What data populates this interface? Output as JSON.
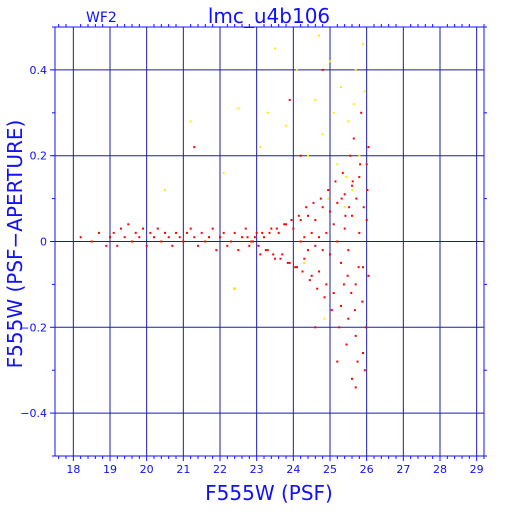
{
  "chart_data": {
    "type": "scatter",
    "title": "lmc_u4b106",
    "panel_label": "WF2",
    "xlabel": "F555W (PSF)",
    "ylabel": "F555W (PSF−APERTURE)",
    "xlim": [
      17.5,
      29.2
    ],
    "ylim": [
      -0.5,
      0.5
    ],
    "x_ticks": [
      18,
      19,
      20,
      21,
      22,
      23,
      24,
      25,
      26,
      27,
      28,
      29
    ],
    "x_tick_labels": [
      "18",
      "19",
      "20",
      "21",
      "22",
      "23",
      "24",
      "25",
      "26",
      "27",
      "28",
      "29"
    ],
    "y_ticks": [
      -0.4,
      -0.2,
      0,
      0.2,
      0.4
    ],
    "y_tick_labels": [
      "−0.4",
      "−0.2",
      "0",
      "0.2",
      "0.4"
    ],
    "grid": true,
    "colors": {
      "axis": "#1010ff",
      "grid": "#1c1ca8",
      "series_red": "#ff0000",
      "series_yellow": "#ffee00"
    },
    "series": [
      {
        "color": "#ff0000",
        "points": [
          [
            18.2,
            0.01
          ],
          [
            18.5,
            0.0
          ],
          [
            18.7,
            0.02
          ],
          [
            18.9,
            -0.01
          ],
          [
            19.0,
            0.01
          ],
          [
            19.1,
            0.02
          ],
          [
            19.2,
            -0.01
          ],
          [
            19.3,
            0.03
          ],
          [
            19.4,
            0.01
          ],
          [
            19.5,
            0.04
          ],
          [
            19.6,
            0.0
          ],
          [
            19.7,
            0.02
          ],
          [
            19.8,
            0.01
          ],
          [
            19.9,
            0.03
          ],
          [
            20.0,
            -0.01
          ],
          [
            20.1,
            0.02
          ],
          [
            20.2,
            0.01
          ],
          [
            20.3,
            0.03
          ],
          [
            20.4,
            0.0
          ],
          [
            20.5,
            0.02
          ],
          [
            20.6,
            0.01
          ],
          [
            20.7,
            -0.01
          ],
          [
            20.8,
            0.02
          ],
          [
            20.9,
            0.01
          ],
          [
            21.0,
            0.0
          ],
          [
            21.1,
            0.02
          ],
          [
            21.2,
            0.03
          ],
          [
            21.3,
            0.01
          ],
          [
            21.4,
            -0.01
          ],
          [
            21.5,
            0.02
          ],
          [
            21.6,
            0.0
          ],
          [
            21.7,
            0.01
          ],
          [
            21.8,
            0.03
          ],
          [
            21.9,
            -0.02
          ],
          [
            22.0,
            0.01
          ],
          [
            22.1,
            0.02
          ],
          [
            22.2,
            -0.01
          ],
          [
            22.3,
            0.0
          ],
          [
            22.4,
            0.02
          ],
          [
            22.5,
            -0.02
          ],
          [
            22.6,
            0.01
          ],
          [
            22.7,
            0.03
          ],
          [
            22.8,
            -0.01
          ],
          [
            22.9,
            0.0
          ],
          [
            23.0,
            0.02
          ],
          [
            23.1,
            -0.03
          ],
          [
            23.2,
            0.01
          ],
          [
            23.3,
            -0.02
          ],
          [
            23.4,
            0.03
          ],
          [
            23.5,
            -0.04
          ],
          [
            23.6,
            0.02
          ],
          [
            23.7,
            -0.03
          ],
          [
            23.8,
            0.04
          ],
          [
            23.9,
            -0.05
          ],
          [
            24.0,
            0.03
          ],
          [
            24.1,
            -0.06
          ],
          [
            24.2,
            0.05
          ],
          [
            24.3,
            -0.04
          ],
          [
            24.4,
            0.06
          ],
          [
            24.5,
            -0.08
          ],
          [
            24.6,
            0.05
          ],
          [
            24.7,
            -0.07
          ],
          [
            24.8,
            0.08
          ],
          [
            24.9,
            -0.1
          ],
          [
            25.0,
            0.07
          ],
          [
            25.1,
            -0.12
          ],
          [
            25.2,
            0.09
          ],
          [
            25.3,
            -0.15
          ],
          [
            25.4,
            0.11
          ],
          [
            25.5,
            -0.18
          ],
          [
            25.6,
            0.13
          ],
          [
            25.7,
            -0.22
          ],
          [
            25.8,
            0.15
          ],
          [
            25.9,
            -0.26
          ],
          [
            26.0,
            0.18
          ],
          [
            25.85,
            0.3
          ],
          [
            25.95,
            -0.3
          ],
          [
            25.65,
            0.24
          ],
          [
            25.75,
            -0.28
          ],
          [
            25.55,
            0.2
          ],
          [
            25.45,
            -0.24
          ],
          [
            25.35,
            0.16
          ],
          [
            25.25,
            -0.2
          ],
          [
            25.15,
            0.14
          ],
          [
            25.05,
            -0.16
          ],
          [
            24.95,
            0.12
          ],
          [
            24.85,
            -0.13
          ],
          [
            24.75,
            0.1
          ],
          [
            24.65,
            -0.11
          ],
          [
            24.55,
            0.09
          ],
          [
            24.45,
            -0.09
          ],
          [
            24.35,
            0.08
          ],
          [
            24.25,
            -0.07
          ],
          [
            24.15,
            0.06
          ],
          [
            24.05,
            -0.06
          ],
          [
            23.95,
            0.05
          ],
          [
            23.85,
            -0.05
          ],
          [
            23.75,
            0.04
          ],
          [
            23.65,
            -0.04
          ],
          [
            23.55,
            0.03
          ],
          [
            23.45,
            -0.03
          ],
          [
            23.35,
            0.02
          ],
          [
            23.25,
            -0.02
          ],
          [
            23.15,
            0.02
          ],
          [
            23.05,
            -0.01
          ],
          [
            22.95,
            0.01
          ],
          [
            22.85,
            0.0
          ],
          [
            22.75,
            0.01
          ],
          [
            25.9,
            -0.06
          ],
          [
            25.8,
            0.02
          ],
          [
            25.7,
            -0.1
          ],
          [
            25.6,
            0.06
          ],
          [
            25.5,
            -0.02
          ],
          [
            25.4,
            0.03
          ],
          [
            25.3,
            -0.05
          ],
          [
            25.2,
            0.0
          ],
          [
            25.1,
            0.04
          ],
          [
            25.0,
            -0.03
          ],
          [
            24.9,
            0.02
          ],
          [
            24.8,
            -0.02
          ],
          [
            24.7,
            0.01
          ],
          [
            24.6,
            -0.01
          ],
          [
            24.5,
            0.02
          ],
          [
            24.4,
            -0.02
          ],
          [
            24.3,
            0.01
          ],
          [
            24.2,
            0.0
          ],
          [
            26.05,
            0.22
          ],
          [
            26.05,
            -0.08
          ],
          [
            26.0,
            0.05
          ],
          [
            25.98,
            -0.2
          ],
          [
            26.02,
            0.12
          ],
          [
            25.92,
            0.08
          ],
          [
            25.88,
            -0.14
          ],
          [
            25.82,
            0.18
          ],
          [
            25.78,
            -0.06
          ],
          [
            25.72,
            0.1
          ],
          [
            25.68,
            -0.16
          ],
          [
            25.62,
            0.14
          ],
          [
            25.58,
            -0.12
          ],
          [
            25.52,
            0.08
          ],
          [
            25.48,
            -0.08
          ],
          [
            25.42,
            0.06
          ],
          [
            25.38,
            -0.1
          ],
          [
            25.32,
            0.1
          ],
          [
            21.3,
            0.22
          ],
          [
            22.4,
            -0.11
          ],
          [
            23.9,
            0.33
          ],
          [
            24.2,
            0.2
          ],
          [
            24.8,
            0.4
          ],
          [
            25.2,
            -0.28
          ],
          [
            24.6,
            -0.2
          ],
          [
            25.6,
            -0.32
          ],
          [
            25.7,
            -0.34
          ]
        ]
      },
      {
        "color": "#ffee00",
        "points": [
          [
            20.5,
            0.12
          ],
          [
            21.2,
            0.28
          ],
          [
            22.1,
            0.16
          ],
          [
            22.5,
            0.31
          ],
          [
            22.4,
            -0.11
          ],
          [
            23.1,
            0.22
          ],
          [
            23.3,
            0.3
          ],
          [
            23.5,
            0.45
          ],
          [
            23.8,
            0.27
          ],
          [
            24.1,
            0.4
          ],
          [
            24.4,
            0.2
          ],
          [
            24.6,
            0.33
          ],
          [
            24.7,
            0.48
          ],
          [
            24.8,
            0.25
          ],
          [
            24.95,
            0.1
          ],
          [
            25.0,
            0.42
          ],
          [
            25.1,
            0.3
          ],
          [
            25.2,
            0.18
          ],
          [
            25.3,
            0.36
          ],
          [
            25.4,
            0.08
          ],
          [
            25.5,
            0.28
          ],
          [
            25.6,
            0.12
          ],
          [
            25.7,
            0.4
          ],
          [
            25.8,
            0.2
          ],
          [
            25.9,
            0.46
          ],
          [
            25.95,
            0.35
          ],
          [
            24.85,
            -0.18
          ],
          [
            24.3,
            -0.05
          ],
          [
            25.45,
            0.15
          ],
          [
            25.65,
            0.32
          ]
        ]
      }
    ]
  }
}
